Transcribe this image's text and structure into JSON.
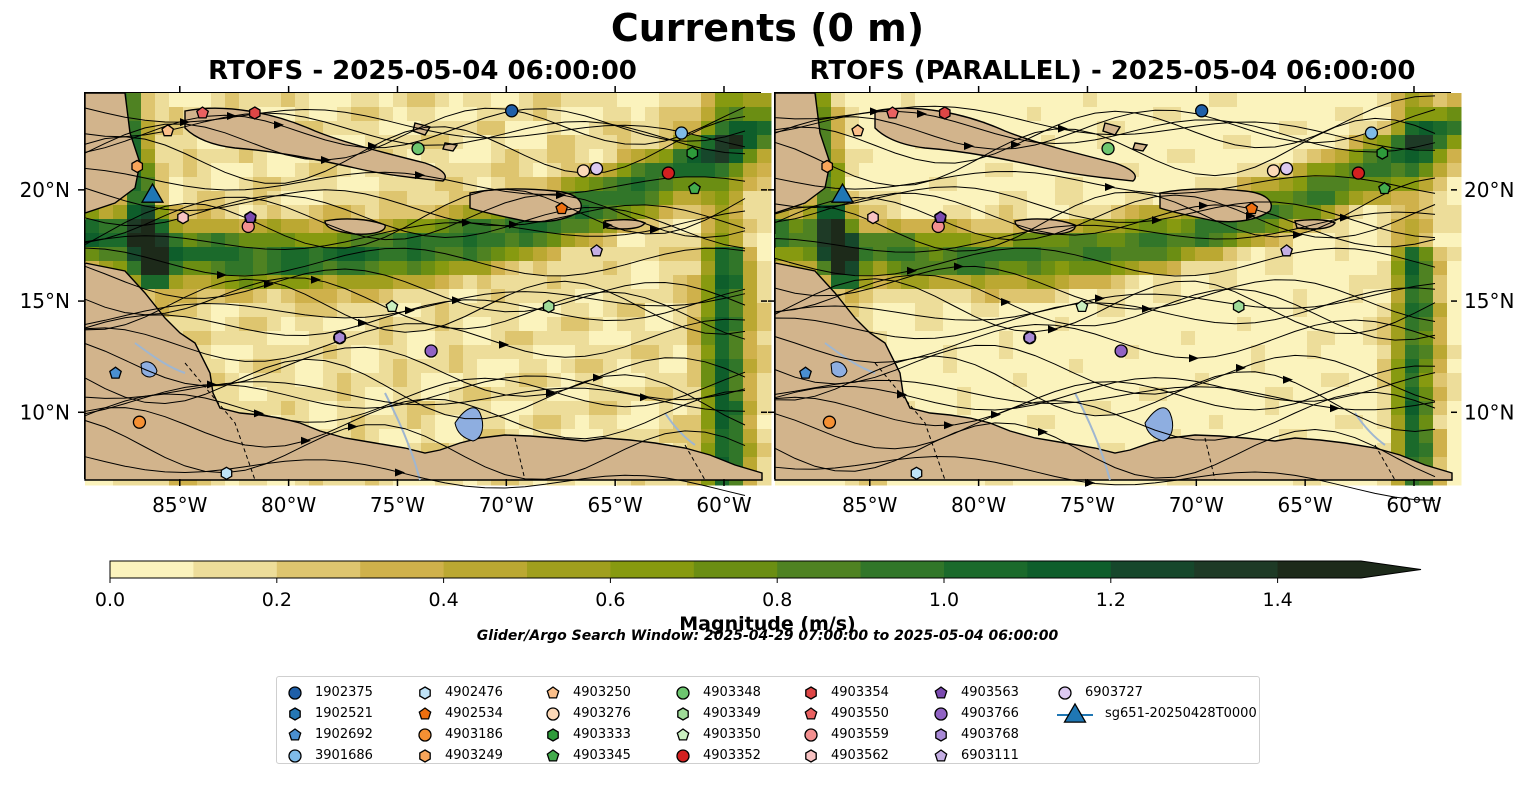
{
  "figure": {
    "title": "Currents (0 m)",
    "panels": [
      {
        "title": "RTOFS - 2025-05-04 06:00:00"
      },
      {
        "title": "RTOFS (PARALLEL) - 2025-05-04 06:00:00"
      }
    ],
    "lon_ticks": [
      "85°W",
      "80°W",
      "75°W",
      "70°W",
      "65°W",
      "60°W"
    ],
    "lat_ticks": [
      "20°N",
      "15°N",
      "10°N"
    ],
    "lon_range": [
      -89.4,
      -58.3
    ],
    "lat_range": [
      7.0,
      24.4
    ],
    "colors": {
      "land": "#d2b48c",
      "lake": "#8eaee0",
      "rivers": "#9fb6d0",
      "streamlines": "#000000"
    }
  },
  "colorbar": {
    "label": "Magnitude (m/s)",
    "tick_labels": [
      "0.0",
      "0.2",
      "0.4",
      "0.6",
      "0.8",
      "1.0",
      "1.2",
      "1.4"
    ],
    "min": 0.0,
    "max": 1.5,
    "step": 0.1,
    "extend": "max",
    "colors": [
      "#fbf3bd",
      "#eddd9a",
      "#dec56f",
      "#cfb14b",
      "#bba832",
      "#a09f1e",
      "#879a10",
      "#6b8e13",
      "#4f8222",
      "#317629",
      "#1b6a2b",
      "#0e5e2b",
      "#16472b",
      "#1e3a26",
      "#1d2a1a"
    ]
  },
  "search_window": "Glider/Argo Search Window: 2025-04-29 07:00:00 to 2025-05-04 06:00:00",
  "legend": [
    {
      "id": "1902375",
      "marker": "circle",
      "color": "#1f5fa8"
    },
    {
      "id": "1902521",
      "marker": "hexagon",
      "color": "#2577b5"
    },
    {
      "id": "1902692",
      "marker": "pentagon",
      "color": "#4a8fd0"
    },
    {
      "id": "3901686",
      "marker": "circle",
      "color": "#7fbbe8"
    },
    {
      "id": "4902476",
      "marker": "hexagon",
      "color": "#bfe3f7"
    },
    {
      "id": "4902534",
      "marker": "pentagon",
      "color": "#ee6f0f"
    },
    {
      "id": "4903186",
      "marker": "circle",
      "color": "#f59033"
    },
    {
      "id": "4903249",
      "marker": "hexagon",
      "color": "#f8a55a"
    },
    {
      "id": "4903250",
      "marker": "pentagon",
      "color": "#fbbf8a"
    },
    {
      "id": "4903276",
      "marker": "circle",
      "color": "#fcd9b8"
    },
    {
      "id": "4903333",
      "marker": "hexagon",
      "color": "#2e9b3a"
    },
    {
      "id": "4903345",
      "marker": "pentagon",
      "color": "#43ab4c"
    },
    {
      "id": "4903348",
      "marker": "circle",
      "color": "#6dc66f"
    },
    {
      "id": "4903349",
      "marker": "hexagon",
      "color": "#9fdb98"
    },
    {
      "id": "4903350",
      "marker": "pentagon",
      "color": "#cbf0c1"
    },
    {
      "id": "4903352",
      "marker": "circle",
      "color": "#d42020"
    },
    {
      "id": "4903354",
      "marker": "hexagon",
      "color": "#de4646"
    },
    {
      "id": "4903550",
      "marker": "pentagon",
      "color": "#ea6161"
    },
    {
      "id": "4903559",
      "marker": "circle",
      "color": "#f38f8f"
    },
    {
      "id": "4903562",
      "marker": "hexagon",
      "color": "#f8c3c3"
    },
    {
      "id": "4903563",
      "marker": "pentagon",
      "color": "#7b4ab0"
    },
    {
      "id": "4903766",
      "marker": "circle",
      "color": "#9163c4"
    },
    {
      "id": "4903768",
      "marker": "hexagon",
      "color": "#a889d6"
    },
    {
      "id": "6903111",
      "marker": "pentagon",
      "color": "#c4aee3"
    },
    {
      "id": "6903727",
      "marker": "circle",
      "color": "#dcc9f1"
    },
    {
      "id": "sg651-20250428T0000",
      "marker": "triangle",
      "color": "#1f77b4"
    }
  ],
  "floats": [
    {
      "id": "1902375",
      "lon": -69.8,
      "lat": 23.6
    },
    {
      "id": "1902521",
      "lon": -81.8,
      "lat": 18.8
    },
    {
      "id": "1902692",
      "lon": -88.0,
      "lat": 11.8
    },
    {
      "id": "3901686",
      "lon": -62.0,
      "lat": 22.6
    },
    {
      "id": "4902476",
      "lon": -82.9,
      "lat": 7.3
    },
    {
      "id": "4902534",
      "lon": -67.5,
      "lat": 19.2
    },
    {
      "id": "4903186",
      "lon": -86.9,
      "lat": 9.6
    },
    {
      "id": "4903249",
      "lon": -87.0,
      "lat": 21.1
    },
    {
      "id": "4903250",
      "lon": -85.6,
      "lat": 22.7
    },
    {
      "id": "4903276",
      "lon": -66.5,
      "lat": 20.9
    },
    {
      "id": "4903333",
      "lon": -61.5,
      "lat": 21.7
    },
    {
      "id": "4903345",
      "lon": -61.4,
      "lat": 20.1
    },
    {
      "id": "4903348",
      "lon": -74.1,
      "lat": 21.9
    },
    {
      "id": "4903349",
      "lon": -68.1,
      "lat": 14.8
    },
    {
      "id": "4903350",
      "lon": -75.3,
      "lat": 14.8
    },
    {
      "id": "4903352",
      "lon": -62.6,
      "lat": 20.8
    },
    {
      "id": "4903354",
      "lon": -81.6,
      "lat": 23.5
    },
    {
      "id": "4903550",
      "lon": -84.0,
      "lat": 23.5
    },
    {
      "id": "4903559",
      "lon": -81.9,
      "lat": 18.4
    },
    {
      "id": "4903562",
      "lon": -84.9,
      "lat": 18.8
    },
    {
      "id": "4903563",
      "lon": -81.8,
      "lat": 18.8
    },
    {
      "id": "4903766",
      "lon": -77.7,
      "lat": 13.4
    },
    {
      "id": "4903766",
      "lon": -73.5,
      "lat": 12.8
    },
    {
      "id": "4903768",
      "lon": -77.7,
      "lat": 13.4
    },
    {
      "id": "6903111",
      "lon": -65.9,
      "lat": 17.3
    },
    {
      "id": "6903727",
      "lon": -65.9,
      "lat": 21.0
    },
    {
      "id": "sg651-20250428T0000",
      "lon": -86.3,
      "lat": 19.9
    }
  ]
}
